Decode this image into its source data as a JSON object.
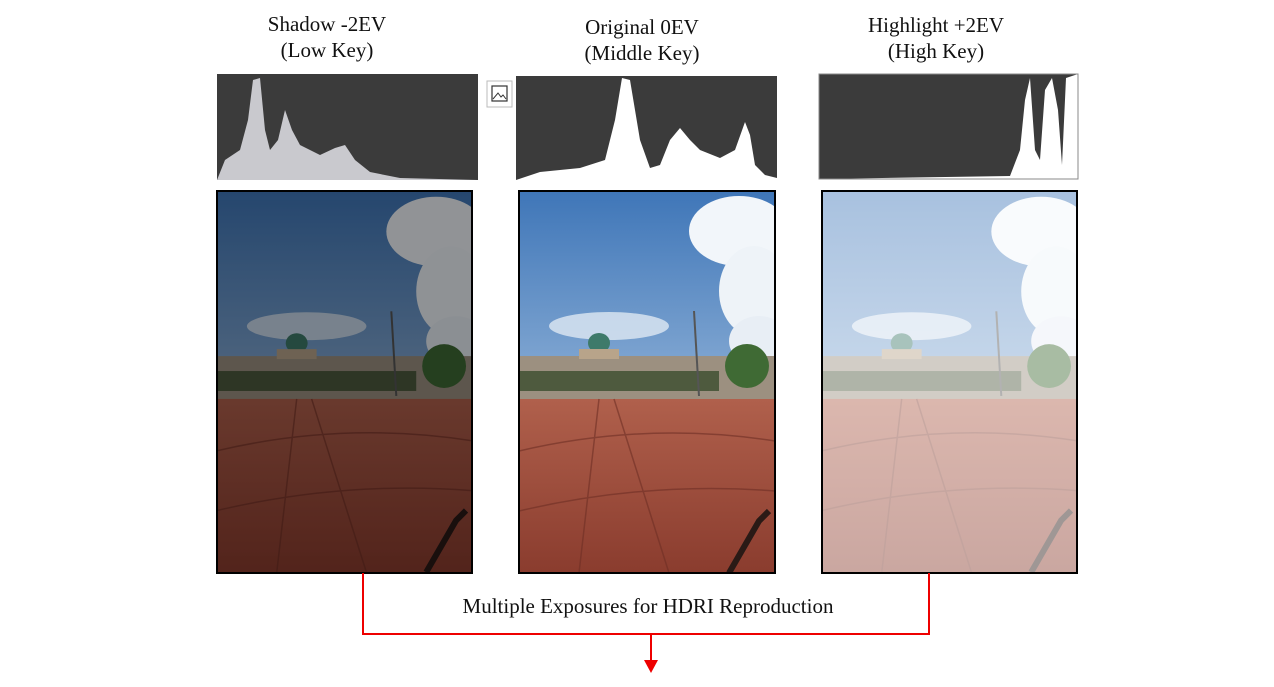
{
  "panels": [
    {
      "title": "Shadow -2EV",
      "subtitle": "(Low Key)"
    },
    {
      "title": "Original 0EV",
      "subtitle": "(Middle Key)"
    },
    {
      "title": "Highlight +2EV",
      "subtitle": "(High Key)"
    }
  ],
  "caption": "Multiple Exposures for HDRI Reproduction"
}
